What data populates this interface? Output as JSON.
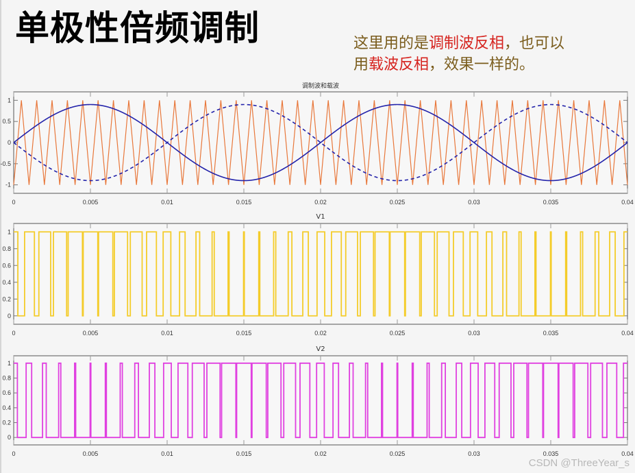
{
  "slide": {
    "title": "单极性倍频调制",
    "note_line1_a": "这里用的是",
    "note_line1_b": "调制波反相",
    "note_line1_c": "，也可以",
    "note_line2_a": "用",
    "note_line2_b": "载波反相",
    "note_line2_c": "，效果一样的。",
    "watermark": "CSDN @ThreeYear_s"
  },
  "colors": {
    "carrier": "#e8773a",
    "modulation": "#2222aa",
    "v1": "#f4cc2a",
    "v2": "#e040e0",
    "note_text": "#7a5c1c",
    "note_highlight": "#d6241f",
    "axis": "#555555"
  },
  "chart_data": [
    {
      "type": "line",
      "title": "调制波和载波",
      "xlabel": "",
      "ylabel": "",
      "xlim": [
        0,
        0.04
      ],
      "ylim": [
        -1.2,
        1.2
      ],
      "xticks": [
        "0",
        "0.005",
        "0.01",
        "0.015",
        "0.02",
        "0.025",
        "0.03",
        "0.035",
        "0.04"
      ],
      "yticks": [
        "1",
        "0.5",
        "0",
        "-0.5",
        "-1"
      ],
      "grid": false,
      "series": [
        {
          "name": "carrier",
          "style": "solid",
          "shape": "triangle",
          "amplitude": 1,
          "frequency_hz": 1000,
          "value_at_t0": -1
        },
        {
          "name": "modulation",
          "style": "solid",
          "shape": "sine",
          "amplitude": 0.9,
          "frequency_hz": 50
        },
        {
          "name": "modulation-inverted",
          "style": "dashed",
          "shape": "sine",
          "amplitude": -0.9,
          "frequency_hz": 50
        }
      ]
    },
    {
      "type": "line",
      "title": "V1",
      "xlim": [
        0,
        0.04
      ],
      "ylim": [
        -0.1,
        1.1
      ],
      "xticks": [
        "0",
        "0.005",
        "0.01",
        "0.015",
        "0.02",
        "0.025",
        "0.03",
        "0.035",
        "0.04"
      ],
      "yticks": [
        "1",
        "0.8",
        "0.6",
        "0.4",
        "0.2",
        "0"
      ],
      "grid": false,
      "series": [
        {
          "name": "V1",
          "rule": "1 when modulation > carrier else 0"
        }
      ]
    },
    {
      "type": "line",
      "title": "V2",
      "xlim": [
        0,
        0.04
      ],
      "ylim": [
        -0.1,
        1.1
      ],
      "xticks": [
        "0",
        "0.005",
        "0.01",
        "0.015",
        "0.02",
        "0.025",
        "0.03",
        "0.035",
        "0.04"
      ],
      "yticks": [
        "1",
        "0.8",
        "0.6",
        "0.4",
        "0.2",
        "0"
      ],
      "grid": false,
      "series": [
        {
          "name": "V2",
          "rule": "1 when modulation-inverted > carrier else 0"
        }
      ]
    }
  ]
}
